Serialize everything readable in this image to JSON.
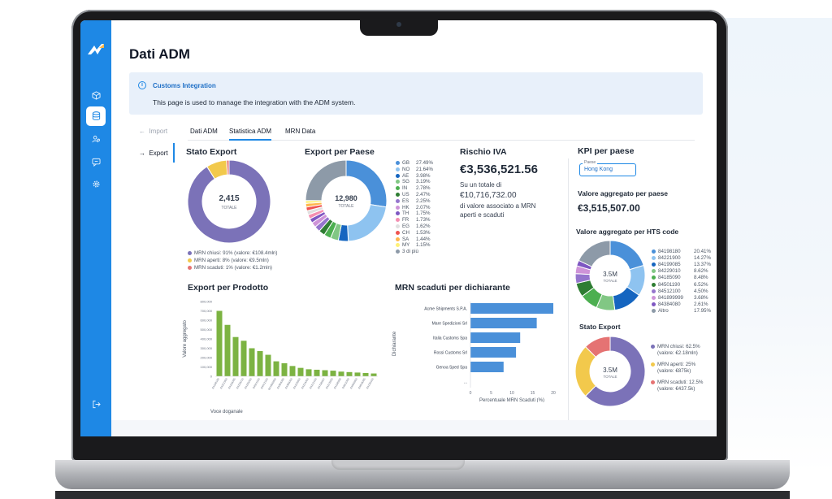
{
  "app": {
    "page_title": "Dati ADM",
    "banner": {
      "icon": "info-icon",
      "title": "Customs Integration",
      "text": "This page is used to manage the integration with the ADM system."
    },
    "sidebar": {
      "items": [
        {
          "icon": "cube-icon",
          "active": false
        },
        {
          "icon": "database-icon",
          "active": true
        },
        {
          "icon": "users-icon",
          "active": false
        },
        {
          "icon": "chat-icon",
          "active": false
        },
        {
          "icon": "gear-icon",
          "active": false
        }
      ],
      "logout_icon": "logout-icon"
    },
    "subnav": {
      "import_label": "Import",
      "export_label": "Export"
    },
    "tabs": [
      {
        "label": "Dati ADM",
        "active": false
      },
      {
        "label": "Statistica ADM",
        "active": true
      },
      {
        "label": "MRN Data",
        "active": false
      }
    ],
    "stato_export": {
      "title": "Stato Export",
      "center_value": "2,415",
      "center_label": "TOTALE",
      "legend": [
        {
          "label": "MRN chiusi: 91% (valore: €108.4mln)",
          "color": "#7b72b8"
        },
        {
          "label": "MRN aperti: 8% (valore: €9.5mln)",
          "color": "#f2c94c"
        },
        {
          "label": "MRN scaduti: 1% (valore: €1.2mln)",
          "color": "#e57373"
        }
      ]
    },
    "export_per_paese": {
      "title": "Export per Paese",
      "center_value": "12,980",
      "center_label": "TOTALE",
      "legend": [
        {
          "code": "GB",
          "pct": "27.49%",
          "color": "#4a90d9"
        },
        {
          "code": "NO",
          "pct": "21.64%",
          "color": "#8ec3f0"
        },
        {
          "code": "AE",
          "pct": "3.98%",
          "color": "#1565c0"
        },
        {
          "code": "SG",
          "pct": "3.19%",
          "color": "#81c784"
        },
        {
          "code": "IN",
          "pct": "2.78%",
          "color": "#4caf50"
        },
        {
          "code": "US",
          "pct": "2.47%",
          "color": "#2e7d32"
        },
        {
          "code": "ES",
          "pct": "2.25%",
          "color": "#9575cd"
        },
        {
          "code": "HK",
          "pct": "2.07%",
          "color": "#ce93d8"
        },
        {
          "code": "TH",
          "pct": "1.75%",
          "color": "#7e57c2"
        },
        {
          "code": "FR",
          "pct": "1.73%",
          "color": "#f48fb1"
        },
        {
          "code": "EG",
          "pct": "1.62%",
          "color": "#e0e0e0"
        },
        {
          "code": "CH",
          "pct": "1.53%",
          "color": "#ef5350"
        },
        {
          "code": "SA",
          "pct": "1.44%",
          "color": "#ffb74d"
        },
        {
          "code": "MY",
          "pct": "1.15%",
          "color": "#fff176"
        },
        {
          "code": "3 di più",
          "pct": "",
          "color": "#8d9aa8"
        }
      ]
    },
    "rischio_iva": {
      "title": "Rischio IVA",
      "value": "€3,536,521.56",
      "line1": "Su un totale di",
      "total": "€10,716,732.00",
      "line2": "di valore associato a MRN",
      "line3": "aperti e scaduti"
    },
    "export_per_prodotto": {
      "title": "Export per Prodotto",
      "ylabel": "Valore aggregato",
      "xlabel": "Voce doganale"
    },
    "mrn_scaduti": {
      "title": "MRN scaduti per dichiarante",
      "ylabel": "Dichiarante",
      "xlabel": "Percentuale MRN Scaduti (%)"
    },
    "kpi": {
      "title": "KPI per paese",
      "select_label": "Paese",
      "select_value": "Hong Kong",
      "valore_title": "Valore aggregato per paese",
      "valore_value": "€3,515,507.00",
      "hts_title": "Valore aggregato per HTS code",
      "hts_center_value": "3.5M",
      "hts_center_label": "TOTALE",
      "hts_legend": [
        {
          "code": "84198180",
          "pct": "20.41%",
          "color": "#4a90d9"
        },
        {
          "code": "84221900",
          "pct": "14.27%",
          "color": "#8ec3f0"
        },
        {
          "code": "84199085",
          "pct": "13.37%",
          "color": "#1565c0"
        },
        {
          "code": "84229010",
          "pct": "8.62%",
          "color": "#81c784"
        },
        {
          "code": "84185090",
          "pct": "8.48%",
          "color": "#4caf50"
        },
        {
          "code": "84501190",
          "pct": "6.52%",
          "color": "#2e7d32"
        },
        {
          "code": "84512100",
          "pct": "4.50%",
          "color": "#9575cd"
        },
        {
          "code": "841899999",
          "pct": "3.68%",
          "color": "#ce93d8"
        },
        {
          "code": "84384080",
          "pct": "2.61%",
          "color": "#7e57c2"
        },
        {
          "code": "Altro",
          "pct": "17.95%",
          "color": "#8d9aa8"
        }
      ],
      "stato_title": "Stato Export",
      "stato_center_value": "3.5M",
      "stato_center_label": "TOTALE",
      "stato_legend": [
        {
          "line1": "MRN chiusi: 62.5%",
          "line2": "(valore: €2.18mln)",
          "color": "#7b72b8"
        },
        {
          "line1": "MRN aperti: 25%",
          "line2": "(valore: €875k)",
          "color": "#f2c94c"
        },
        {
          "line1": "MRN scaduti: 12.5%",
          "line2": "(valore: €437.5k)",
          "color": "#e57373"
        }
      ]
    }
  },
  "chart_data": [
    {
      "type": "pie",
      "title": "Stato Export",
      "labels": [
        "MRN chiusi",
        "MRN aperti",
        "MRN scaduti"
      ],
      "values": [
        91,
        8,
        1
      ]
    },
    {
      "type": "pie",
      "title": "Export per Paese",
      "labels": [
        "GB",
        "NO",
        "AE",
        "SG",
        "IN",
        "US",
        "ES",
        "HK",
        "TH",
        "FR",
        "EG",
        "CH",
        "SA",
        "MY",
        "3 di più"
      ],
      "values": [
        27.49,
        21.64,
        3.98,
        3.19,
        2.78,
        2.47,
        2.25,
        2.07,
        1.75,
        1.73,
        1.62,
        1.53,
        1.44,
        1.15,
        24.91
      ]
    },
    {
      "type": "bar",
      "title": "Export per Prodotto",
      "ylabel": "Valore aggregato",
      "xlabel": "Voce doganale",
      "ylim": [
        0,
        800000
      ],
      "yticks": [
        "0",
        "100,000",
        "200,000",
        "300,000",
        "400,000",
        "500,000",
        "600,000",
        "700,000",
        "800,000"
      ],
      "categories": [
        "84198180",
        "84221900",
        "84199085",
        "84229010",
        "84185090",
        "84501190",
        "84512100",
        "841899999",
        "84384080",
        "84389000",
        "84193900",
        "84224000",
        "84212100",
        "84798997",
        "84213920",
        "84198998",
        "84811099",
        "84099900",
        "84818085",
        "84139100"
      ],
      "values": [
        700000,
        550000,
        420000,
        380000,
        300000,
        270000,
        230000,
        160000,
        140000,
        110000,
        90000,
        75000,
        70000,
        65000,
        60000,
        50000,
        45000,
        40000,
        35000,
        30000
      ]
    },
    {
      "type": "bar",
      "orientation": "horizontal",
      "title": "MRN scaduti per dichiarante",
      "ylabel": "Dichiarante",
      "xlabel": "Percentuale MRN Scaduti (%)",
      "xlim": [
        0,
        20
      ],
      "xticks": [
        "0",
        "5",
        "10",
        "15",
        "20"
      ],
      "categories": [
        "Acme Shipments S.P.A.",
        "Mare Spedizioni Srl",
        "Italia Customs Spa",
        "Rossi Customs Srl",
        "Genoa Sped Spa",
        "..."
      ],
      "values": [
        20,
        16,
        12,
        11,
        8,
        0
      ]
    },
    {
      "type": "pie",
      "title": "Valore aggregato per HTS code",
      "labels": [
        "84198180",
        "84221900",
        "84199085",
        "84229010",
        "84185090",
        "84501190",
        "84512100",
        "841899999",
        "84384080",
        "Altro"
      ],
      "values": [
        20.41,
        14.27,
        13.37,
        8.62,
        8.48,
        6.52,
        4.5,
        3.68,
        2.61,
        17.95
      ]
    },
    {
      "type": "pie",
      "title": "Stato Export",
      "labels": [
        "MRN chiusi",
        "MRN aperti",
        "MRN scaduti"
      ],
      "values": [
        62.5,
        25,
        12.5
      ]
    }
  ]
}
